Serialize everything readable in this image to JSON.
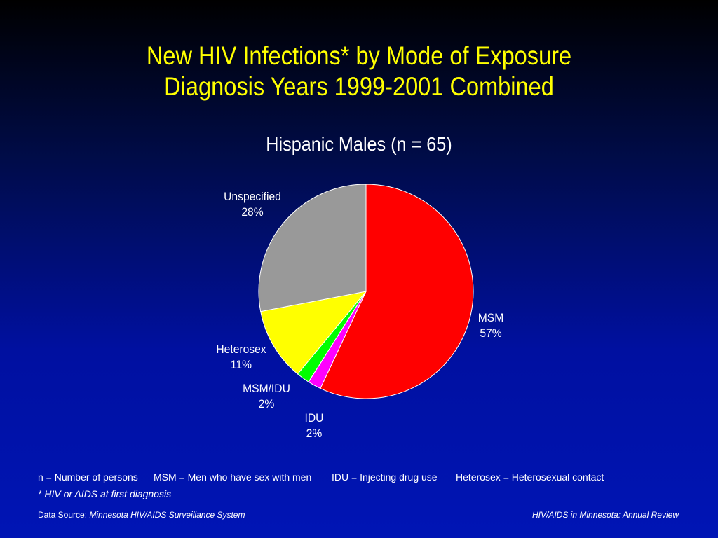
{
  "title_line1": "New HIV Infections* by Mode of Exposure",
  "title_line2": "Diagnosis Years 1999-2001 Combined",
  "chart_data": {
    "type": "pie",
    "title": "Hispanic Males (n = 65)",
    "slices": [
      {
        "label": "MSM",
        "percent_label": "57%",
        "value": 57,
        "color": "#ff0000"
      },
      {
        "label": "IDU",
        "percent_label": "2%",
        "value": 2,
        "color": "#ff00ff"
      },
      {
        "label": "MSM/IDU",
        "percent_label": "2%",
        "value": 2,
        "color": "#00ff00"
      },
      {
        "label": "Heterosex",
        "percent_label": "11%",
        "value": 11,
        "color": "#ffff00"
      },
      {
        "label": "Unspecified",
        "percent_label": "28%",
        "value": 28,
        "color": "#999999"
      }
    ]
  },
  "legend": {
    "n": "n = Number of persons",
    "msm": "MSM = Men who have sex with men",
    "idu": "IDU = Injecting drug use",
    "heterosex": "Heterosex = Heterosexual contact"
  },
  "footnote": "* HIV or AIDS at first diagnosis",
  "source": {
    "prefix": "Data Source: ",
    "name": "Minnesota HIV/AIDS Surveillance System"
  },
  "publication": "HIV/AIDS in Minnesota: Annual Review"
}
